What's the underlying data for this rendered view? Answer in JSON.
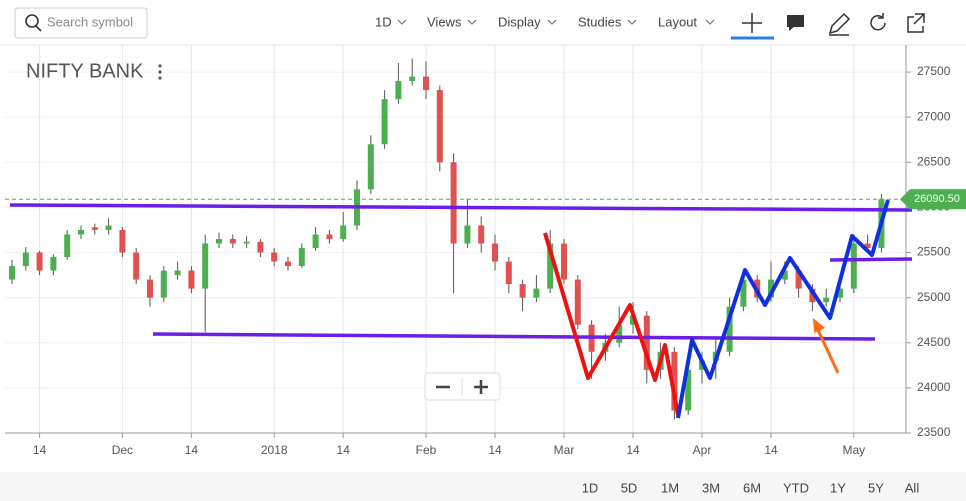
{
  "toolbar": {
    "search_placeholder": "Search symbol",
    "menus": [
      "1D",
      "Views",
      "Display",
      "Studies",
      "Layout"
    ]
  },
  "ranges": [
    "1D",
    "5D",
    "1M",
    "3M",
    "6M",
    "YTD",
    "1Y",
    "5Y",
    "All"
  ],
  "chart_data": {
    "type": "candlestick",
    "title": "NIFTY BANK",
    "categories": [
      null,
      null,
      "14",
      null,
      null,
      null,
      null,
      null,
      "Dec",
      null,
      null,
      null,
      null,
      "14",
      null,
      null,
      null,
      null,
      null,
      "2018",
      null,
      null,
      null,
      null,
      "14",
      null,
      null,
      null,
      null,
      null,
      "Feb",
      null,
      null,
      null,
      null,
      "14",
      null,
      null,
      null,
      null,
      "Mar",
      null,
      null,
      null,
      null,
      "14",
      null,
      null,
      null,
      null,
      "Apr",
      null,
      null,
      null,
      null,
      "14",
      null,
      null,
      null,
      null,
      null,
      "May",
      null,
      null
    ],
    "open": [
      25200,
      25350,
      25500,
      25300,
      25450,
      25700,
      25780,
      25750,
      25750,
      25500,
      25200,
      25000,
      25250,
      25300,
      25100,
      25600,
      25650,
      25600,
      25620,
      25500,
      25400,
      25350,
      25550,
      25700,
      25650,
      25800,
      26200,
      26700,
      27200,
      27400,
      27450,
      27300,
      26500,
      25600,
      25800,
      25600,
      25400,
      25150,
      25000,
      25100,
      25600,
      25200,
      24700,
      24400,
      24500,
      24700,
      24800,
      24200,
      24400,
      23750,
      24200,
      24300,
      24400,
      24900,
      25200,
      25000,
      25200,
      25300,
      25100,
      24950,
      25000,
      25100,
      25600,
      25550
    ],
    "high": [
      25420,
      25560,
      25520,
      25480,
      25750,
      25800,
      25820,
      25880,
      25780,
      25550,
      25250,
      25350,
      25400,
      25350,
      25700,
      25720,
      25700,
      25680,
      25650,
      25550,
      25450,
      25600,
      25780,
      25750,
      25950,
      26300,
      26800,
      27300,
      27600,
      27650,
      27620,
      27350,
      26600,
      26100,
      25900,
      25700,
      25450,
      25200,
      25250,
      25750,
      25650,
      25250,
      24750,
      24600,
      24900,
      24950,
      24850,
      24500,
      24450,
      24300,
      24400,
      24550,
      25000,
      25300,
      25250,
      25400,
      25400,
      25350,
      25150,
      25100,
      25200,
      25700,
      25700,
      26150
    ],
    "low": [
      25150,
      25300,
      25250,
      25250,
      25420,
      25650,
      25700,
      25700,
      25450,
      25150,
      24900,
      24950,
      25200,
      25050,
      24620,
      25550,
      25550,
      25550,
      25450,
      25350,
      25300,
      25330,
      25520,
      25600,
      25620,
      25750,
      26150,
      26650,
      27150,
      27350,
      27200,
      26400,
      25050,
      25550,
      25500,
      25300,
      25050,
      24850,
      24950,
      25050,
      25150,
      24650,
      24100,
      24300,
      24450,
      24600,
      24050,
      24100,
      23650,
      23700,
      24050,
      24100,
      24350,
      24850,
      24950,
      24950,
      25150,
      25000,
      24850,
      24900,
      24950,
      25050,
      25500,
      25500
    ],
    "close": [
      25350,
      25500,
      25300,
      25450,
      25700,
      25750,
      25750,
      25800,
      25500,
      25200,
      25000,
      25300,
      25300,
      25100,
      25600,
      25650,
      25600,
      25620,
      25500,
      25400,
      25350,
      25550,
      25700,
      25650,
      25800,
      26200,
      26700,
      27200,
      27400,
      27450,
      27300,
      26500,
      25600,
      25800,
      25600,
      25400,
      25150,
      25000,
      25100,
      25600,
      25200,
      24700,
      24400,
      24500,
      24700,
      24800,
      24200,
      24400,
      23750,
      24200,
      24300,
      24400,
      24900,
      25200,
      25000,
      25200,
      25300,
      25100,
      24950,
      25000,
      25100,
      25600,
      25550,
      26090.5
    ],
    "up_color": "#4caf50",
    "down_color": "#e0524f",
    "ylim": [
      23500,
      27800
    ],
    "yticks": [
      23500,
      24000,
      24500,
      25000,
      25500,
      26000,
      26500,
      27000,
      27500
    ],
    "last_price": {
      "value": 26090.5,
      "label": "26090.50"
    }
  }
}
